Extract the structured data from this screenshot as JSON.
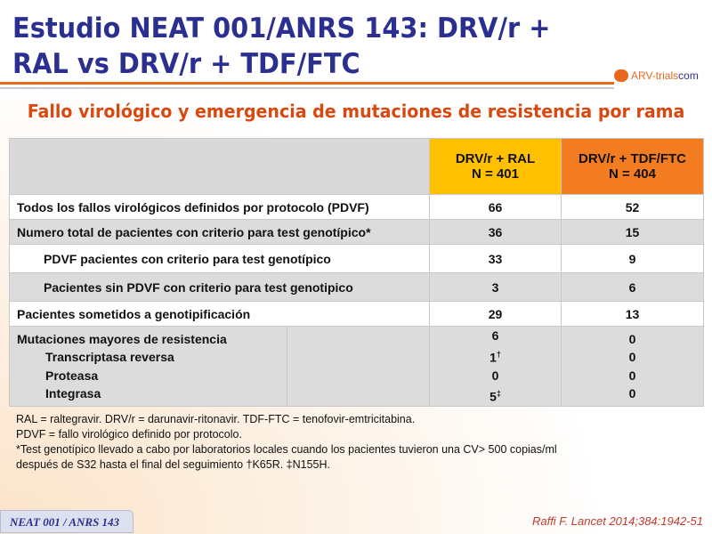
{
  "title": "Estudio NEAT 001/ANRS 143: DRV/r + RAL vs DRV/r + TDF/FTC",
  "logo": {
    "part1": "ARV-trials",
    "part2": "com"
  },
  "subtitle": "Fallo virológico y emergencia de mutaciones de resistencia por rama",
  "table": {
    "col1": {
      "line1": "DRV/r + RAL",
      "line2": "N = 401"
    },
    "col2": {
      "line1": "DRV/r + TDF/FTC",
      "line2": "N = 404"
    },
    "rows": [
      {
        "label": "Todos los fallos virológicos definidos por protocolo (PDVF)",
        "a": "66",
        "b": "52"
      },
      {
        "label": "Numero total de pacientes con criterio para test genotípico*",
        "a": "36",
        "b": "15"
      },
      {
        "label": "PDVF pacientes con criterio para test genotípico",
        "a": "33",
        "b": "9"
      },
      {
        "label": "Pacientes sin PDVF con criterio para test genotipico",
        "a": "3",
        "b": "6"
      },
      {
        "label": "Pacientes sometidos a genotipificación",
        "a": "29",
        "b": "13"
      }
    ],
    "mutations": {
      "label": "Mutaciones mayores de resistencia",
      "a": "6",
      "b": "0",
      "sub": [
        {
          "label": "Transcriptasa reversa",
          "a": "1",
          "a_sup": "†",
          "b": "0"
        },
        {
          "label": "Proteasa",
          "a": "0",
          "a_sup": "",
          "b": "0"
        },
        {
          "label": "Integrasa",
          "a": "5",
          "a_sup": "‡",
          "b": "0"
        }
      ]
    }
  },
  "footnotes": [
    "RAL = raltegravir.  DRV/r = darunavir-ritonavir.  TDF-FTC = tenofovir-emtricitabina.",
    "PDVF = fallo virológico definido por protocolo.",
    "*Test genotípico llevado a cabo por laboratorios locales cuando los pacientes tuvieron  una CV> 500 copias/ml",
    "después de S32 hasta el final del seguimiento †K65R. ‡N155H."
  ],
  "badge": "NEAT 001 / ANRS 143",
  "reference": "Raffi F. Lancet 2014;384:1942-51"
}
